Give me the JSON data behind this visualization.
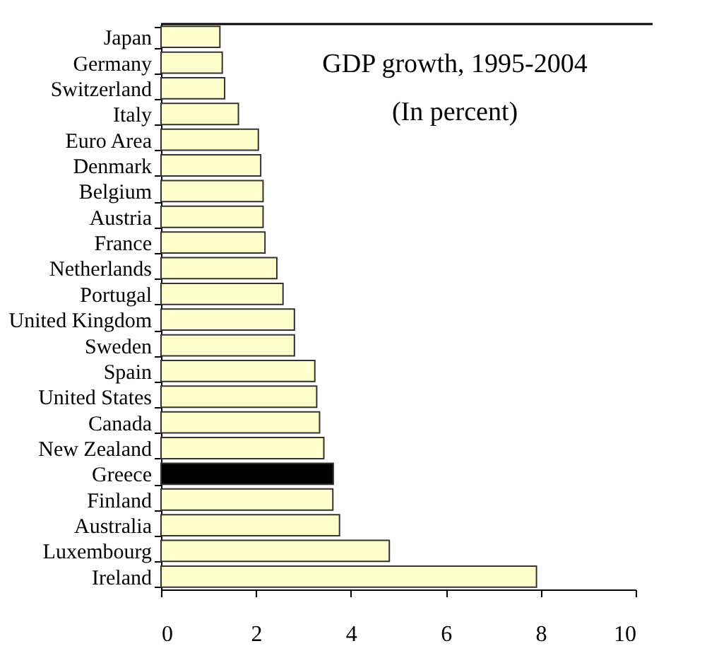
{
  "chart_data": {
    "type": "bar",
    "orientation": "horizontal",
    "title": "GDP growth, 1995-2004",
    "subtitle": "(In percent)",
    "categories": [
      "Japan",
      "Germany",
      "Switzerland",
      "Italy",
      "Euro Area",
      "Denmark",
      "Belgium",
      "Austria",
      "France",
      "Netherlands",
      "Portugal",
      "United Kingdom",
      "Sweden",
      "Spain",
      "United States",
      "Canada",
      "New Zealand",
      "Greece",
      "Finland",
      "Australia",
      "Luxembourg",
      "Ireland"
    ],
    "values": [
      1.24,
      1.29,
      1.34,
      1.63,
      2.05,
      2.1,
      2.15,
      2.15,
      2.19,
      2.44,
      2.57,
      2.81,
      2.81,
      3.24,
      3.28,
      3.34,
      3.43,
      3.63,
      3.62,
      3.76,
      4.81,
      7.91
    ],
    "colors": [
      "#ffffcc",
      "#ffffcc",
      "#ffffcc",
      "#ffffcc",
      "#ffffcc",
      "#ffffcc",
      "#ffffcc",
      "#ffffcc",
      "#ffffcc",
      "#ffffcc",
      "#ffffcc",
      "#ffffcc",
      "#ffffcc",
      "#ffffcc",
      "#ffffcc",
      "#ffffcc",
      "#ffffcc",
      "#000000",
      "#ffffcc",
      "#ffffcc",
      "#ffffcc",
      "#ffffcc"
    ],
    "xlim": [
      0,
      10
    ],
    "xticks": [
      0,
      2,
      4,
      6,
      8,
      10
    ]
  }
}
